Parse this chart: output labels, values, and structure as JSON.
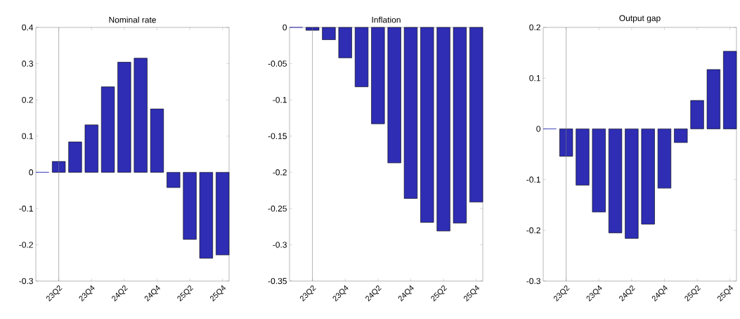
{
  "chart_data": [
    {
      "type": "bar",
      "title": "Nominal rate",
      "categories": [
        null,
        "23Q2",
        null,
        "23Q4",
        null,
        "24Q2",
        null,
        "24Q4",
        null,
        "25Q2",
        null,
        "25Q4"
      ],
      "values": [
        0,
        0.03,
        0.084,
        0.131,
        0.236,
        0.304,
        0.315,
        0.175,
        -0.042,
        -0.185,
        -0.237,
        -0.228
      ],
      "color": "#2e2db4",
      "ylim": [
        -0.3,
        0.4
      ],
      "yticks": [
        -0.3,
        -0.2,
        -0.1,
        0,
        0.1,
        0.2,
        0.3,
        0.4
      ],
      "ref_lines": [
        {
          "axis": "x",
          "value": "23Q2",
          "color": "#808080"
        }
      ]
    },
    {
      "type": "bar",
      "title": "Inflation",
      "categories": [
        null,
        "23Q2",
        null,
        "23Q4",
        null,
        "24Q2",
        null,
        "24Q4",
        null,
        "25Q2",
        null,
        "25Q4"
      ],
      "values": [
        0,
        -0.004,
        -0.017,
        -0.042,
        -0.082,
        -0.133,
        -0.187,
        -0.236,
        -0.269,
        -0.281,
        -0.27,
        -0.241
      ],
      "color": "#2e2db4",
      "ylim": [
        -0.35,
        0
      ],
      "yticks": [
        -0.35,
        -0.3,
        -0.25,
        -0.2,
        -0.15,
        -0.1,
        -0.05,
        0
      ],
      "ref_lines": [
        {
          "axis": "x",
          "value": "23Q2",
          "color": "#808080"
        }
      ]
    },
    {
      "type": "bar",
      "title": "Output gap",
      "categories": [
        null,
        "23Q2",
        null,
        "23Q4",
        null,
        "24Q2",
        null,
        "24Q4",
        null,
        "25Q2",
        null,
        "25Q4"
      ],
      "values": [
        0,
        -0.054,
        -0.111,
        -0.164,
        -0.205,
        -0.216,
        -0.188,
        -0.117,
        -0.027,
        0.056,
        0.117,
        0.153
      ],
      "color": "#2e2db4",
      "ylim": [
        -0.3,
        0.2
      ],
      "yticks": [
        -0.3,
        -0.2,
        -0.1,
        0,
        0.1,
        0.2
      ],
      "ref_lines": [
        {
          "axis": "x",
          "value": "23Q2",
          "color": "#808080"
        }
      ]
    }
  ]
}
